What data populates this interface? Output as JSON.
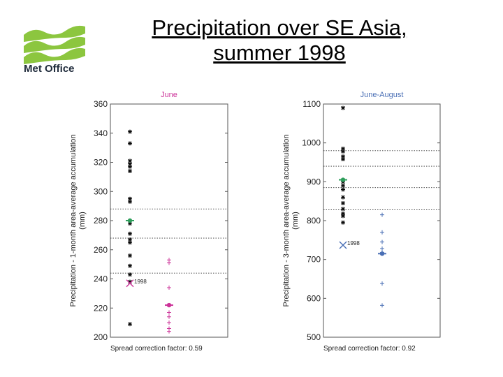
{
  "slide": {
    "title_line1": "Precipitation over SE Asia,",
    "title_line2": "summer 1998"
  },
  "logo": {
    "text": "Met Office",
    "icon": "met-office-waves-icon",
    "color": "#8cc63f"
  },
  "chart_data": [
    {
      "type": "scatter",
      "title": "June",
      "title_color": "#cc3399",
      "ylabel": "Precipitation - 1-month area-average accumulation (mm)",
      "ylim": [
        200,
        360
      ],
      "yticks": [
        200,
        220,
        240,
        260,
        280,
        300,
        320,
        340,
        360
      ],
      "footnote": "Spread correction factor: 0.59",
      "reference_lines": [
        244,
        268,
        288
      ],
      "series": [
        {
          "color": "#000000",
          "marker": "asterisk",
          "values": [
            341,
            333,
            321,
            319,
            317,
            314,
            295,
            293,
            278,
            271,
            267,
            265,
            256,
            249,
            243,
            238,
            209
          ],
          "mean": 280,
          "mean_color": "#2e9e5b",
          "observed": {
            "value": 237,
            "label": "1998",
            "color": "#cc3399"
          }
        },
        {
          "color": "#cc3399",
          "marker": "plus",
          "values": [
            253,
            251,
            234,
            217,
            214,
            210,
            206,
            204
          ],
          "mean": 222,
          "mean_color": "#cc3399"
        }
      ]
    },
    {
      "type": "scatter",
      "title": "June-August",
      "title_color": "#4a6fb5",
      "ylabel": "Precipitation - 3-month area-average accumulation (mm)",
      "ylim": [
        500,
        1100
      ],
      "yticks": [
        500,
        600,
        700,
        800,
        900,
        1000,
        1100
      ],
      "footnote": "Spread correction factor: 0.92",
      "reference_lines": [
        828,
        885,
        940,
        980
      ],
      "series": [
        {
          "color": "#000000",
          "marker": "asterisk",
          "values": [
            1090,
            985,
            978,
            965,
            958,
            900,
            890,
            880,
            860,
            845,
            830,
            818,
            812,
            795
          ],
          "mean": 905,
          "mean_color": "#2e9e5b",
          "observed": {
            "value": 737,
            "label": "1998",
            "color": "#4a6fb5"
          }
        },
        {
          "color": "#4a6fb5",
          "marker": "plus",
          "values": [
            815,
            770,
            745,
            728,
            718,
            638,
            582
          ],
          "mean": 715,
          "mean_color": "#4a6fb5"
        }
      ]
    }
  ]
}
